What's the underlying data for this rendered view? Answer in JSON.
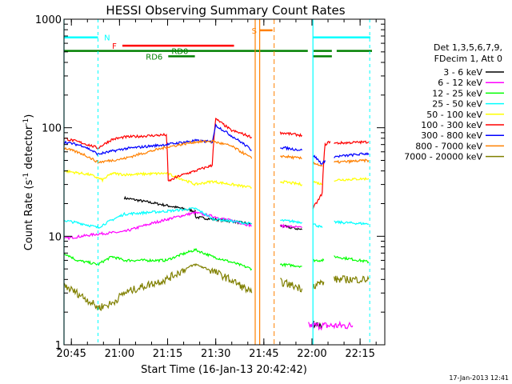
{
  "chart_data": {
    "type": "line",
    "title": "HESSI Observing Summary Count Rates",
    "xlabel": "Start Time (16-Jan-13 20:42:42)",
    "ylabel_main": "Count Rate (s",
    "ylabel_sup1": "-1",
    "ylabel_mid": " detector",
    "ylabel_sup2": "-1",
    "ylabel_end": ")",
    "yscale": "log",
    "ylim": [
      1,
      1000
    ],
    "xlim_minutes": [
      0,
      100
    ],
    "x_ticks": [
      {
        "label": "20:45",
        "min": 2.3
      },
      {
        "label": "21:00",
        "min": 17.3
      },
      {
        "label": "21:15",
        "min": 32.3
      },
      {
        "label": "21:30",
        "min": 47.3
      },
      {
        "label": "21:45",
        "min": 62.3
      },
      {
        "label": "22:00",
        "min": 77.3
      },
      {
        "label": "22:15",
        "min": 92.3
      }
    ],
    "y_ticks": [
      {
        "label": "1",
        "value": 1
      },
      {
        "label": "10",
        "value": 10
      },
      {
        "label": "100",
        "value": 100
      },
      {
        "label": "1000",
        "value": 1000
      }
    ],
    "legend_header": [
      "Det 1,3,5,6,7,9,",
      "FDecim 1, Att 0"
    ],
    "footer_date": "17-Jan-2013 12:41",
    "flag_labels": {
      "N": "N",
      "F": "F",
      "RD0": "RD0",
      "RD6": "RD6",
      "S": "S"
    },
    "series": [
      {
        "name": "3 - 6 keV",
        "color": "#000000",
        "segments": [
          [
            [
              18.8,
              22.5
            ],
            [
              40.9,
              17.0
            ],
            [
              41.0,
              15.0
            ],
            [
              58.5,
              13.0
            ]
          ],
          [
            [
              67.4,
              12.5
            ],
            [
              74.2,
              11.5
            ]
          ],
          [
            [
              77.6,
              1.6
            ],
            [
              80.5,
              1.5
            ]
          ]
        ]
      },
      {
        "name": "6 - 12 keV",
        "color": "#ff00ff",
        "segments": [
          [
            [
              0,
              9.5
            ],
            [
              10.6,
              10.5
            ],
            [
              18.8,
              11.0
            ],
            [
              40.9,
              16.5
            ],
            [
              58.5,
              12.5
            ]
          ],
          [
            [
              67.4,
              12.5
            ],
            [
              74.2,
              12.0
            ]
          ],
          [
            [
              76.2,
              1.5
            ],
            [
              90.0,
              1.5
            ]
          ]
        ]
      },
      {
        "name": "12 - 25 keV",
        "color": "#00ff00",
        "segments": [
          [
            [
              0,
              7.0
            ],
            [
              4.0,
              6.0
            ],
            [
              10.6,
              5.5
            ],
            [
              15.0,
              6.5
            ],
            [
              18.8,
              6.0
            ],
            [
              31.9,
              6.0
            ],
            [
              40.9,
              7.5
            ],
            [
              46.2,
              6.5
            ],
            [
              58.5,
              5.0
            ]
          ],
          [
            [
              67.4,
              5.5
            ],
            [
              74.2,
              5.3
            ]
          ],
          [
            [
              77.6,
              6.0
            ],
            [
              81.0,
              6.0
            ]
          ],
          [
            [
              84.2,
              6.5
            ],
            [
              95.0,
              5.8
            ]
          ]
        ]
      },
      {
        "name": "25 - 50 keV",
        "color": "#00ffff",
        "segments": [
          [
            [
              0,
              14.0
            ],
            [
              6.0,
              13.0
            ],
            [
              10.6,
              12.0
            ],
            [
              18.8,
              16.0
            ],
            [
              31.9,
              17.0
            ],
            [
              40.9,
              18.0
            ],
            [
              46.2,
              14.5
            ],
            [
              58.5,
              13.0
            ]
          ],
          [
            [
              67.4,
              14.0
            ],
            [
              74.2,
              13.5
            ]
          ],
          [
            [
              77.6,
              13.0
            ],
            [
              80.5,
              12.0
            ]
          ],
          [
            [
              84.2,
              13.5
            ],
            [
              95.0,
              13.0
            ]
          ]
        ]
      },
      {
        "name": "50 - 100 keV",
        "color": "#ffff00",
        "segments": [
          [
            [
              0,
              40.0
            ],
            [
              8.0,
              37.0
            ],
            [
              12.0,
              33.0
            ],
            [
              15.0,
              38.0
            ],
            [
              18.8,
              37.0
            ],
            [
              31.9,
              38.0
            ],
            [
              40.9,
              30.0
            ],
            [
              46.2,
              32.0
            ],
            [
              58.5,
              28.0
            ]
          ],
          [
            [
              67.4,
              32.0
            ],
            [
              74.2,
              30.0
            ]
          ],
          [
            [
              77.6,
              32.0
            ],
            [
              80.5,
              30.0
            ]
          ],
          [
            [
              84.2,
              33.0
            ],
            [
              95.0,
              34.0
            ]
          ]
        ]
      },
      {
        "name": "100 - 300 keV",
        "color": "#ff0000",
        "segments": [
          [
            [
              0,
              80.0
            ],
            [
              6.0,
              72.0
            ],
            [
              10.6,
              65.0
            ],
            [
              15.0,
              78.0
            ],
            [
              18.8,
              82.0
            ],
            [
              31.9,
              86.0
            ],
            [
              32.5,
              32.0
            ],
            [
              36.0,
              36.0
            ],
            [
              40.9,
              40.0
            ],
            [
              46.2,
              45.0
            ],
            [
              47.3,
              120.0
            ],
            [
              52.0,
              95.0
            ],
            [
              58.5,
              82.0
            ]
          ],
          [
            [
              67.4,
              90.0
            ],
            [
              74.2,
              85.0
            ]
          ],
          [
            [
              77.6,
              18.0
            ],
            [
              79.5,
              22.0
            ],
            [
              80.5,
              25.0
            ],
            [
              81.4,
              70.0
            ],
            [
              83.0,
              75.0
            ]
          ],
          [
            [
              84.2,
              72.0
            ],
            [
              95.0,
              74.0
            ]
          ]
        ]
      },
      {
        "name": "300 - 800 keV",
        "color": "#0000ff",
        "segments": [
          [
            [
              0,
              74.0
            ],
            [
              6.0,
              68.0
            ],
            [
              10.6,
              57.0
            ],
            [
              18.8,
              64.0
            ],
            [
              31.9,
              70.0
            ],
            [
              40.9,
              76.0
            ],
            [
              46.2,
              74.0
            ],
            [
              47.3,
              105.0
            ],
            [
              52.0,
              85.0
            ],
            [
              58.5,
              62.0
            ]
          ],
          [
            [
              67.4,
              66.0
            ],
            [
              74.2,
              62.0
            ]
          ],
          [
            [
              77.6,
              56.0
            ],
            [
              80.5,
              46.0
            ],
            [
              81.4,
              50.0
            ]
          ],
          [
            [
              84.2,
              54.0
            ],
            [
              95.0,
              58.0
            ]
          ]
        ]
      },
      {
        "name": "800 - 7000 keV",
        "color": "#ff8000",
        "segments": [
          [
            [
              0,
              65.0
            ],
            [
              6.0,
              57.0
            ],
            [
              10.6,
              48.0
            ],
            [
              18.8,
              52.0
            ],
            [
              31.9,
              66.0
            ],
            [
              40.9,
              74.0
            ],
            [
              46.2,
              75.0
            ],
            [
              52.0,
              68.0
            ],
            [
              58.5,
              52.0
            ]
          ],
          [
            [
              67.4,
              55.0
            ],
            [
              74.2,
              52.0
            ]
          ],
          [
            [
              77.6,
              48.0
            ],
            [
              80.5,
              44.0
            ]
          ],
          [
            [
              84.2,
              48.0
            ],
            [
              95.0,
              50.0
            ]
          ]
        ]
      },
      {
        "name": "7000 - 20000 keV",
        "color": "#808000",
        "segments": [
          [
            [
              0,
              3.5
            ],
            [
              4.0,
              3.0
            ],
            [
              10.6,
              2.2
            ],
            [
              15.0,
              2.4
            ],
            [
              18.8,
              3.0
            ],
            [
              31.9,
              4.0
            ],
            [
              40.9,
              5.5
            ],
            [
              46.2,
              4.8
            ],
            [
              58.5,
              3.0
            ]
          ],
          [
            [
              67.4,
              3.8
            ],
            [
              74.2,
              3.3
            ]
          ],
          [
            [
              77.6,
              3.5
            ],
            [
              81.0,
              3.8
            ]
          ],
          [
            [
              84.2,
              4.0
            ],
            [
              95.0,
              4.0
            ]
          ]
        ]
      }
    ]
  }
}
